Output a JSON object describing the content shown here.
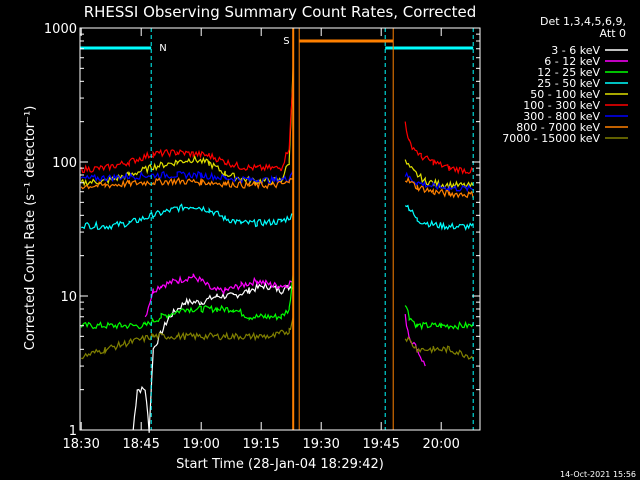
{
  "title": "RHESSI Observing Summary Count Rates, Corrected",
  "xlabel": "Start Time (28-Jan-04 18:29:42)",
  "ylabel": "Corrected Count Rate (s⁻¹ detector⁻¹)",
  "timestamp": "14-Oct-2021 15:56",
  "legend_header": [
    "Det 1,3,4,5,6,9,",
    "Att 0"
  ],
  "flags": [
    {
      "label": "N",
      "color": "#00ffff"
    },
    {
      "label": "S",
      "color": "#ff8000"
    }
  ],
  "colors": {
    "background": "#000000",
    "axes": "#ffffff",
    "night": "#00ffff",
    "saa": "#ff8000"
  },
  "chart_data": {
    "type": "line",
    "title": "RHESSI Observing Summary Count Rates, Corrected",
    "xlabel": "Start Time (28-Jan-04 18:29:42)",
    "ylabel": "Corrected Count Rate (s⁻¹ detector⁻¹)",
    "x_unit": "minutes after 18:29:42",
    "xlim": [
      "18:29:42",
      "20:09:42"
    ],
    "ylim": [
      1,
      1000
    ],
    "yscale": "log",
    "x_ticks": [
      "18:30",
      "18:45",
      "19:00",
      "19:15",
      "19:30",
      "19:45",
      "20:00"
    ],
    "y_ticks": [
      "1",
      "10",
      "100",
      "1000"
    ],
    "legend_position": "right",
    "night_intervals": [
      [
        "18:29:42",
        "18:47:30"
      ],
      [
        "19:46:00",
        "20:08:00"
      ]
    ],
    "saa_interval": [
      "19:23:00",
      "19:48:00"
    ],
    "gap": [
      "19:24:00",
      "19:50:00"
    ],
    "series": [
      {
        "name": "3 - 6 keV",
        "color": "#ffffff",
        "points": [
          [
            "18:43",
            1
          ],
          [
            "18:44",
            2
          ],
          [
            "18:46",
            2
          ],
          [
            "18:47",
            1
          ],
          [
            "18:48",
            4
          ],
          [
            "18:52",
            7
          ],
          [
            "18:56",
            9
          ],
          [
            "19:00",
            9
          ],
          [
            "19:04",
            10
          ],
          [
            "19:08",
            10
          ],
          [
            "19:12",
            11
          ],
          [
            "19:16",
            12
          ],
          [
            "19:20",
            11
          ],
          [
            "19:23",
            12
          ]
        ]
      },
      {
        "name": "6 - 12 keV",
        "color": "#ff00ff",
        "points": [
          [
            "18:46",
            7
          ],
          [
            "18:48",
            11
          ],
          [
            "18:50",
            12
          ],
          [
            "18:54",
            13
          ],
          [
            "18:58",
            14
          ],
          [
            "19:00",
            13
          ],
          [
            "19:03",
            11
          ],
          [
            "19:06",
            11
          ],
          [
            "19:10",
            12
          ],
          [
            "19:14",
            13
          ],
          [
            "19:18",
            12
          ],
          [
            "19:21",
            12
          ],
          [
            "19:23",
            13
          ]
        ],
        "points2": [
          [
            "19:51",
            7
          ],
          [
            "19:52",
            5
          ],
          [
            "19:54",
            4
          ],
          [
            "19:56",
            3
          ]
        ]
      },
      {
        "name": "12 - 25 keV",
        "color": "#00ff00",
        "points": [
          [
            "18:30",
            6
          ],
          [
            "18:40",
            6
          ],
          [
            "18:46",
            6
          ],
          [
            "18:50",
            7
          ],
          [
            "18:56",
            8
          ],
          [
            "19:00",
            8
          ],
          [
            "19:04",
            8
          ],
          [
            "19:08",
            8
          ],
          [
            "19:12",
            7
          ],
          [
            "19:16",
            7
          ],
          [
            "19:20",
            7
          ],
          [
            "19:22",
            8
          ],
          [
            "19:23",
            15
          ]
        ],
        "points2": [
          [
            "19:51",
            9
          ],
          [
            "19:52",
            7
          ],
          [
            "19:54",
            6
          ],
          [
            "20:00",
            6
          ],
          [
            "20:08",
            6
          ]
        ]
      },
      {
        "name": "25 - 50 keV",
        "color": "#00ffff",
        "points": [
          [
            "18:30",
            34
          ],
          [
            "18:36",
            33
          ],
          [
            "18:42",
            35
          ],
          [
            "18:48",
            40
          ],
          [
            "18:54",
            45
          ],
          [
            "18:58",
            47
          ],
          [
            "19:02",
            44
          ],
          [
            "19:06",
            38
          ],
          [
            "19:10",
            35
          ],
          [
            "19:14",
            35
          ],
          [
            "19:20",
            36
          ],
          [
            "19:23",
            40
          ]
        ],
        "points2": [
          [
            "19:51",
            50
          ],
          [
            "19:52",
            45
          ],
          [
            "19:54",
            37
          ],
          [
            "19:58",
            34
          ],
          [
            "20:02",
            33
          ],
          [
            "20:08",
            33
          ]
        ]
      },
      {
        "name": "50 - 100 keV",
        "color": "#e0e000",
        "points": [
          [
            "18:30",
            70
          ],
          [
            "18:36",
            72
          ],
          [
            "18:42",
            80
          ],
          [
            "18:48",
            92
          ],
          [
            "18:54",
            100
          ],
          [
            "18:58",
            105
          ],
          [
            "19:02",
            98
          ],
          [
            "19:06",
            82
          ],
          [
            "19:10",
            75
          ],
          [
            "19:14",
            72
          ],
          [
            "19:20",
            73
          ],
          [
            "19:22",
            100
          ],
          [
            "19:23",
            550
          ]
        ],
        "points2": [
          [
            "19:51",
            100
          ],
          [
            "19:53",
            85
          ],
          [
            "19:56",
            72
          ],
          [
            "20:00",
            68
          ],
          [
            "20:08",
            66
          ]
        ]
      },
      {
        "name": "100 - 300 keV",
        "color": "#ff0000",
        "points": [
          [
            "18:30",
            88
          ],
          [
            "18:36",
            90
          ],
          [
            "18:42",
            100
          ],
          [
            "18:48",
            115
          ],
          [
            "18:54",
            118
          ],
          [
            "18:58",
            115
          ],
          [
            "19:02",
            112
          ],
          [
            "19:06",
            100
          ],
          [
            "19:10",
            92
          ],
          [
            "19:14",
            90
          ],
          [
            "19:20",
            90
          ],
          [
            "19:22",
            130
          ],
          [
            "19:23",
            420
          ]
        ],
        "points2": [
          [
            "19:51",
            200
          ],
          [
            "19:52",
            140
          ],
          [
            "19:55",
            110
          ],
          [
            "19:58",
            100
          ],
          [
            "20:02",
            90
          ],
          [
            "20:08",
            85
          ]
        ]
      },
      {
        "name": "300 - 800 keV",
        "color": "#0000ff",
        "points": [
          [
            "18:30",
            75
          ],
          [
            "18:36",
            76
          ],
          [
            "18:42",
            78
          ],
          [
            "18:48",
            80
          ],
          [
            "18:54",
            80
          ],
          [
            "19:00",
            80
          ],
          [
            "19:06",
            76
          ],
          [
            "19:12",
            74
          ],
          [
            "19:18",
            73
          ],
          [
            "19:22",
            75
          ],
          [
            "19:23",
            90
          ]
        ],
        "points2": [
          [
            "19:51",
            80
          ],
          [
            "19:54",
            70
          ],
          [
            "19:58",
            66
          ],
          [
            "20:02",
            64
          ],
          [
            "20:08",
            63
          ]
        ]
      },
      {
        "name": "800 - 7000 keV",
        "color": "#ff8000",
        "points": [
          [
            "18:30",
            66
          ],
          [
            "18:36",
            67
          ],
          [
            "18:42",
            69
          ],
          [
            "18:48",
            71
          ],
          [
            "18:54",
            72
          ],
          [
            "19:00",
            71
          ],
          [
            "19:06",
            69
          ],
          [
            "19:12",
            67
          ],
          [
            "19:18",
            67
          ],
          [
            "19:22",
            70
          ],
          [
            "19:23",
            80
          ]
        ],
        "points2": [
          [
            "19:51",
            75
          ],
          [
            "19:54",
            65
          ],
          [
            "19:58",
            60
          ],
          [
            "20:02",
            58
          ],
          [
            "20:08",
            57
          ]
        ]
      },
      {
        "name": "7000 - 15000 keV",
        "color": "#808000",
        "points": [
          [
            "18:30",
            3.5
          ],
          [
            "18:36",
            4
          ],
          [
            "18:42",
            4.5
          ],
          [
            "18:48",
            5
          ],
          [
            "18:54",
            5
          ],
          [
            "19:00",
            5
          ],
          [
            "19:06",
            5
          ],
          [
            "19:12",
            5
          ],
          [
            "19:18",
            5
          ],
          [
            "19:22",
            5.5
          ],
          [
            "19:23",
            7
          ]
        ],
        "points2": [
          [
            "19:51",
            5
          ],
          [
            "19:54",
            4
          ],
          [
            "19:58",
            4
          ],
          [
            "20:02",
            4
          ],
          [
            "20:08",
            3.5
          ]
        ]
      }
    ]
  }
}
